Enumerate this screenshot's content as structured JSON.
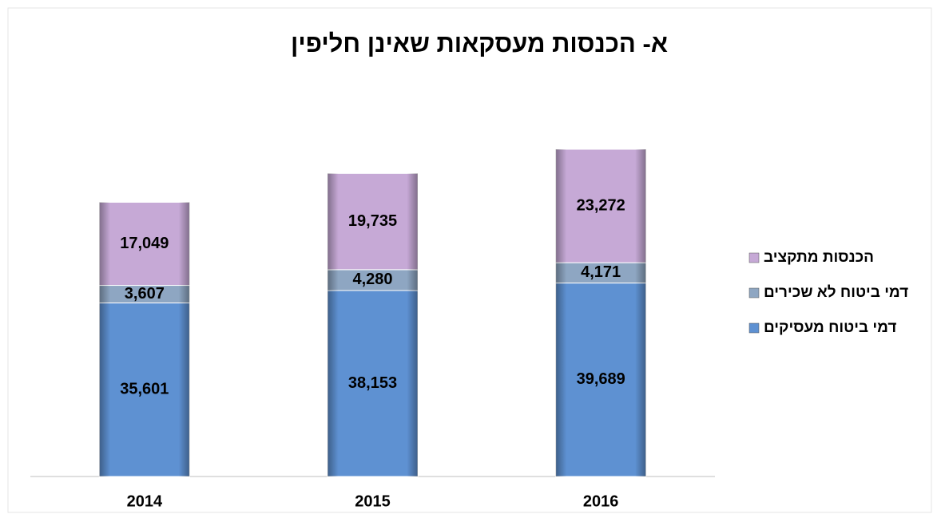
{
  "chart_data": {
    "type": "stacked_bar",
    "title": "א- הכנסות מעסקאות שאינן חליפין",
    "categories": [
      "2014",
      "2015",
      "2016"
    ],
    "series": [
      {
        "name": "דמי ביטוח מעסיקים",
        "color": "#5e91d2",
        "values": [
          35601,
          38153,
          39689
        ],
        "value_labels": [
          "35,601",
          "38,153",
          "39,689"
        ]
      },
      {
        "name": "דמי ביטוח לא שכירים",
        "color": "#8ea6c2",
        "values": [
          3607,
          4280,
          4171
        ],
        "value_labels": [
          "3,607",
          "4,280",
          "4,171"
        ]
      },
      {
        "name": "הכנסות מתקציב",
        "color": "#c6a9d6",
        "values": [
          17049,
          19735,
          23272
        ],
        "value_labels": [
          "17,049",
          "19,735",
          "23,272"
        ]
      }
    ],
    "legend": "right"
  }
}
